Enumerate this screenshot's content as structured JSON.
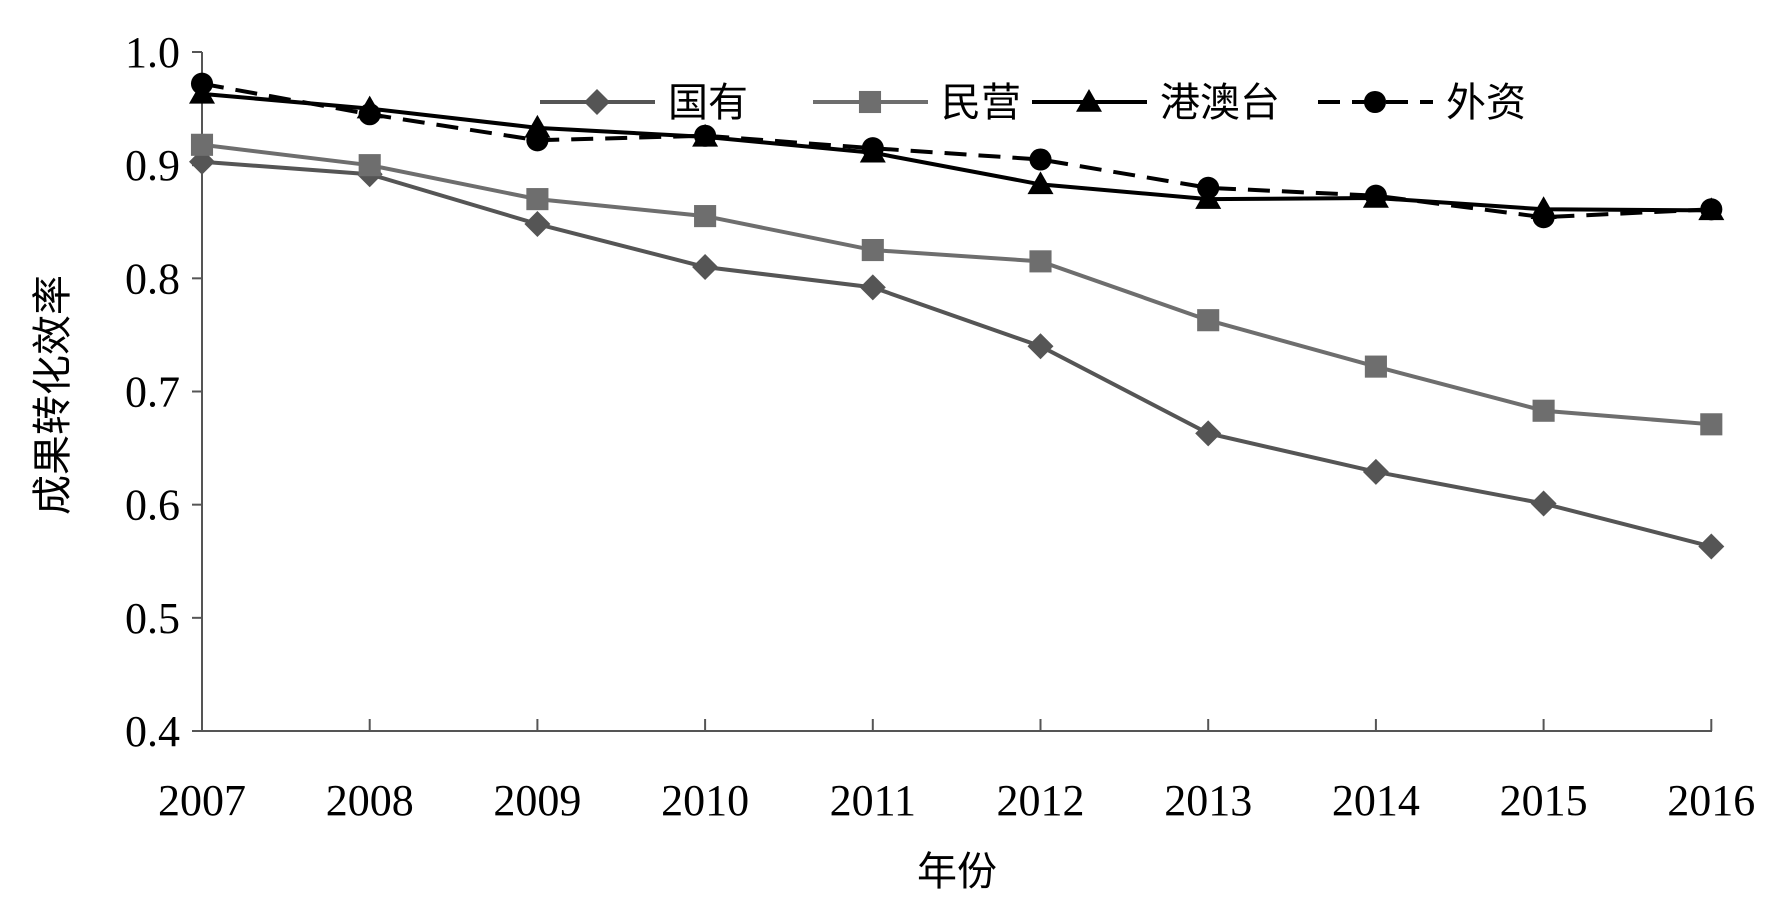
{
  "chart_data": {
    "type": "line",
    "title": "",
    "xlabel": "年份",
    "ylabel": "成果转化效率",
    "categories": [
      "2007",
      "2008",
      "2009",
      "2010",
      "2011",
      "2012",
      "2013",
      "2014",
      "2015",
      "2016"
    ],
    "y_ticks": [
      "0.4",
      "0.5",
      "0.6",
      "0.7",
      "0.8",
      "0.9",
      "1.0"
    ],
    "ylim": [
      0.4,
      1.0
    ],
    "grid": false,
    "legend_position": "top",
    "series": [
      {
        "name": "国有",
        "marker": "diamond",
        "dashed": false,
        "color": "#555555",
        "values": [
          0.903,
          0.892,
          0.848,
          0.81,
          0.792,
          0.74,
          0.663,
          0.629,
          0.601,
          0.563
        ]
      },
      {
        "name": "民营",
        "marker": "square",
        "dashed": false,
        "color": "#6e6e6e",
        "values": [
          0.918,
          0.9,
          0.87,
          0.855,
          0.825,
          0.815,
          0.763,
          0.722,
          0.683,
          0.671
        ]
      },
      {
        "name": "港澳台",
        "marker": "triangle",
        "dashed": false,
        "color": "#000000",
        "values": [
          0.963,
          0.95,
          0.933,
          0.925,
          0.911,
          0.883,
          0.87,
          0.871,
          0.861,
          0.86
        ]
      },
      {
        "name": "外资",
        "marker": "circle",
        "dashed": true,
        "color": "#000000",
        "values": [
          0.972,
          0.945,
          0.922,
          0.926,
          0.915,
          0.905,
          0.88,
          0.873,
          0.854,
          0.861
        ]
      }
    ]
  }
}
